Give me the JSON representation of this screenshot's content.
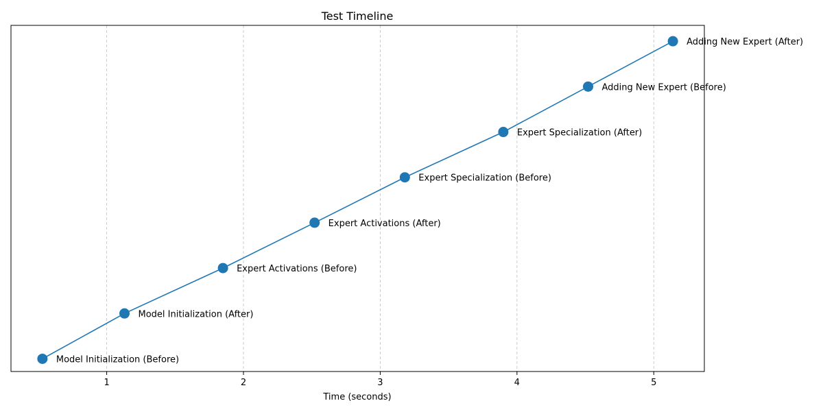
{
  "chart_data": {
    "type": "line",
    "title": "Test Timeline",
    "xlabel": "Time (seconds)",
    "ylabel": "",
    "xlim": [
      0.3,
      5.37
    ],
    "ylim": [
      -0.28,
      7.35
    ],
    "xticks": [
      1,
      2,
      3,
      4,
      5
    ],
    "xtick_labels": [
      "1",
      "2",
      "3",
      "4",
      "5"
    ],
    "grid": "x-dashed",
    "series_color": "#1f77b4",
    "points": [
      {
        "x": 0.53,
        "y": 0,
        "label": "Model Initialization (Before)"
      },
      {
        "x": 1.13,
        "y": 1,
        "label": "Model Initialization (After)"
      },
      {
        "x": 1.85,
        "y": 2,
        "label": "Expert Activations (Before)"
      },
      {
        "x": 2.52,
        "y": 3,
        "label": "Expert Activations (After)"
      },
      {
        "x": 3.18,
        "y": 4,
        "label": "Expert Specialization (Before)"
      },
      {
        "x": 3.9,
        "y": 5,
        "label": "Expert Specialization (After)"
      },
      {
        "x": 4.52,
        "y": 6,
        "label": "Adding New Expert (Before)"
      },
      {
        "x": 5.14,
        "y": 7,
        "label": "Adding New Expert (After)"
      }
    ]
  }
}
